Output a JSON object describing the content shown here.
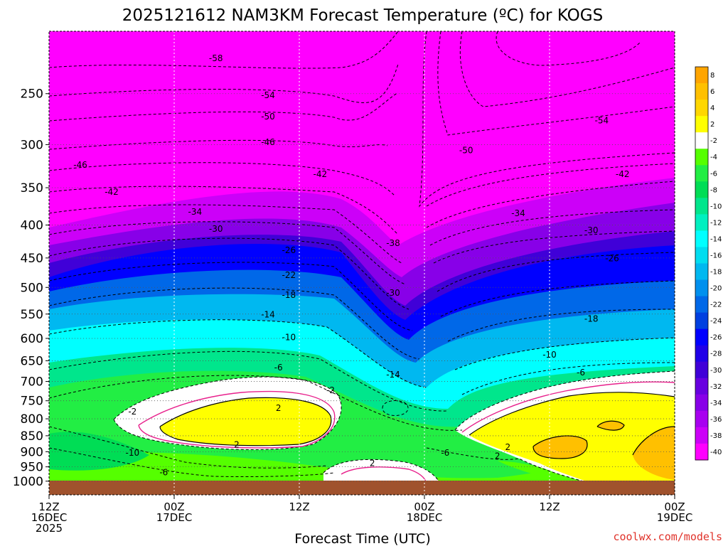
{
  "chart_data": {
    "type": "heatmap",
    "title": "2025121612 NAM3KM Forecast Temperature (ºC) for KOGS",
    "xlabel": "Forecast Time (UTC)",
    "ylabel": "",
    "y_scale": "log",
    "y_reversed": true,
    "y_range": [
      1050,
      200
    ],
    "y_ticks": [
      250,
      300,
      350,
      400,
      450,
      500,
      550,
      600,
      650,
      700,
      750,
      800,
      850,
      900,
      950,
      1000
    ],
    "x_range": [
      "2025-12-16T12:00Z",
      "2025-12-19T00:00Z"
    ],
    "x_ticks": [
      {
        "time": "2025-12-16T12:00Z",
        "label": [
          "12Z",
          "16DEC",
          "2025"
        ]
      },
      {
        "time": "2025-12-17T00:00Z",
        "label": [
          "00Z",
          "17DEC"
        ]
      },
      {
        "time": "2025-12-17T12:00Z",
        "label": [
          "12Z"
        ]
      },
      {
        "time": "2025-12-18T00:00Z",
        "label": [
          "00Z",
          "18DEC"
        ]
      },
      {
        "time": "2025-12-18T12:00Z",
        "label": [
          "12Z"
        ]
      },
      {
        "time": "2025-12-19T00:00Z",
        "label": [
          "00Z",
          "19DEC"
        ]
      }
    ],
    "grid": "dotted",
    "colorbar": {
      "placement": "right",
      "unit": "ºC",
      "levels": [
        8,
        6,
        4,
        2,
        -2,
        -4,
        -6,
        -8,
        -10,
        -12,
        -14,
        -16,
        -18,
        -20,
        -22,
        -24,
        -26,
        -28,
        -30,
        -32,
        -34,
        -36,
        -38,
        -40
      ],
      "colors": [
        "#ffa500",
        "#ffc000",
        "#ffd700",
        "#ffff00",
        "#ffffff",
        "#55ff00",
        "#22ee44",
        "#00dd55",
        "#00e68c",
        "#00f0c0",
        "#00ffff",
        "#00ddf0",
        "#00b8f0",
        "#0090ee",
        "#0068e8",
        "#0040e0",
        "#0000ff",
        "#2000e8",
        "#4000d8",
        "#6800e0",
        "#8800e8",
        "#a800f0",
        "#cc00f8",
        "#ff00ff"
      ]
    },
    "isotherm_labels": [
      {
        "value": -58,
        "time": "2025-12-17T04:00Z",
        "p": 220
      },
      {
        "value": -54,
        "time": "2025-12-17T09:00Z",
        "p": 251
      },
      {
        "value": -50,
        "time": "2025-12-17T09:00Z",
        "p": 271
      },
      {
        "value": -46,
        "time": "2025-12-17T09:00Z",
        "p": 297
      },
      {
        "value": -46,
        "time": "2025-12-16T15:00Z",
        "p": 322
      },
      {
        "value": -42,
        "time": "2025-12-17T14:00Z",
        "p": 333
      },
      {
        "value": -42,
        "time": "2025-12-16T18:00Z",
        "p": 355
      },
      {
        "value": -34,
        "time": "2025-12-17T02:00Z",
        "p": 381
      },
      {
        "value": -30,
        "time": "2025-12-17T04:00Z",
        "p": 405
      },
      {
        "value": -26,
        "time": "2025-12-17T11:00Z",
        "p": 437
      },
      {
        "value": -22,
        "time": "2025-12-17T11:00Z",
        "p": 478
      },
      {
        "value": -18,
        "time": "2025-12-17T11:00Z",
        "p": 513
      },
      {
        "value": -14,
        "time": "2025-12-17T09:00Z",
        "p": 550
      },
      {
        "value": -10,
        "time": "2025-12-17T11:00Z",
        "p": 597
      },
      {
        "value": -6,
        "time": "2025-12-17T10:00Z",
        "p": 665
      },
      {
        "value": -2,
        "time": "2025-12-17T15:00Z",
        "p": 722
      },
      {
        "value": 2,
        "time": "2025-12-17T10:00Z",
        "p": 769
      },
      {
        "value": -2,
        "time": "2025-12-16T20:00Z",
        "p": 779
      },
      {
        "value": 2,
        "time": "2025-12-17T06:00Z",
        "p": 877
      },
      {
        "value": -10,
        "time": "2025-12-16T20:00Z",
        "p": 902
      },
      {
        "value": -6,
        "time": "2025-12-16T23:00Z",
        "p": 968
      },
      {
        "value": 2,
        "time": "2025-12-17T19:00Z",
        "p": 937
      },
      {
        "value": -54,
        "time": "2025-12-18T17:00Z",
        "p": 275
      },
      {
        "value": -50,
        "time": "2025-12-18T04:00Z",
        "p": 306
      },
      {
        "value": -42,
        "time": "2025-12-18T19:00Z",
        "p": 333
      },
      {
        "value": -38,
        "time": "2025-12-17T21:00Z",
        "p": 426
      },
      {
        "value": -34,
        "time": "2025-12-18T09:00Z",
        "p": 383
      },
      {
        "value": -30,
        "time": "2025-12-18T16:00Z",
        "p": 407
      },
      {
        "value": -26,
        "time": "2025-12-18T18:00Z",
        "p": 450
      },
      {
        "value": -30,
        "time": "2025-12-17T21:00Z",
        "p": 509
      },
      {
        "value": -18,
        "time": "2025-12-18T16:00Z",
        "p": 559
      },
      {
        "value": -14,
        "time": "2025-12-17T21:00Z",
        "p": 682
      },
      {
        "value": -10,
        "time": "2025-12-18T12:00Z",
        "p": 635
      },
      {
        "value": -6,
        "time": "2025-12-18T15:00Z",
        "p": 677
      },
      {
        "value": -6,
        "time": "2025-12-18T02:00Z",
        "p": 902
      },
      {
        "value": 2,
        "time": "2025-12-18T08:00Z",
        "p": 884
      },
      {
        "value": 2,
        "time": "2025-12-18T07:00Z",
        "p": 913
      }
    ]
  },
  "watermark": "coolwx.com/models"
}
